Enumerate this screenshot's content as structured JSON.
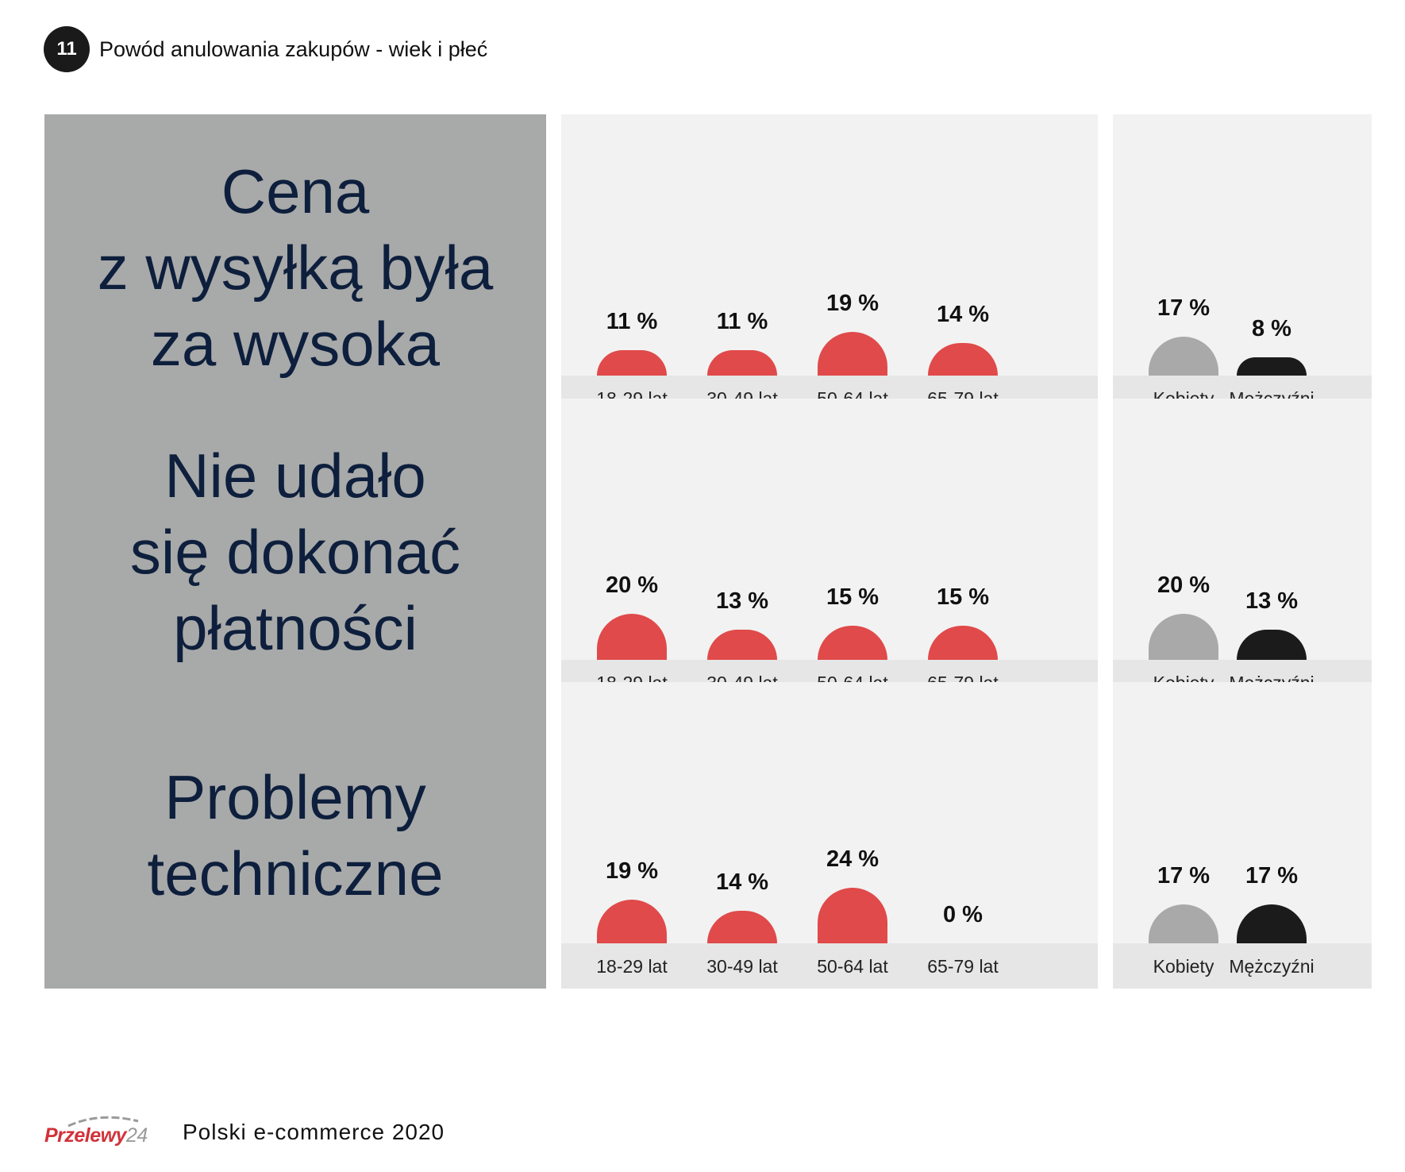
{
  "header": {
    "badge": "11",
    "title": "Powód anulowania zakupów - wiek i płeć"
  },
  "colors": {
    "age": "#e04a4a",
    "women": "#a9a9a9",
    "men": "#1b1b1b",
    "category_bg": "#a8a9a9",
    "panel_bg": "#f2f2f2",
    "strip_bg": "#e6e6e6",
    "category_text": "#0d1f3c"
  },
  "chart_data": {
    "type": "bar",
    "age_groups": [
      "18-29 lat",
      "30-49 lat",
      "50-64 lat",
      "65-79 lat"
    ],
    "genders": [
      "Kobiety",
      "Mężczyźni"
    ],
    "unit": "%",
    "rows": [
      {
        "category": "Cena\nz wysyłką była\nza wysoka",
        "age_values": [
          11,
          11,
          19,
          14
        ],
        "age_labels": [
          "11 %",
          "11 %",
          "19 %",
          "14 %"
        ],
        "gender_values": [
          17,
          8
        ],
        "gender_labels": [
          "17 %",
          "8 %"
        ]
      },
      {
        "category": "Nie udało\nsię dokonać\npłatności",
        "age_values": [
          20,
          13,
          15,
          15
        ],
        "age_labels": [
          "20 %",
          "13 %",
          "15 %",
          "15 %"
        ],
        "gender_values": [
          20,
          13
        ],
        "gender_labels": [
          "20 %",
          "13 %"
        ]
      },
      {
        "category": "Problemy\ntechniczne",
        "age_values": [
          19,
          14,
          24,
          0
        ],
        "age_labels": [
          "19 %",
          "14 %",
          "24 %",
          "0 %"
        ],
        "gender_values": [
          17,
          17
        ],
        "gender_labels": [
          "17 %",
          "17 %"
        ]
      }
    ]
  },
  "footer": {
    "logo_main": "Przelewy",
    "logo_num": "24",
    "text": "Polski e-commerce 2020"
  }
}
